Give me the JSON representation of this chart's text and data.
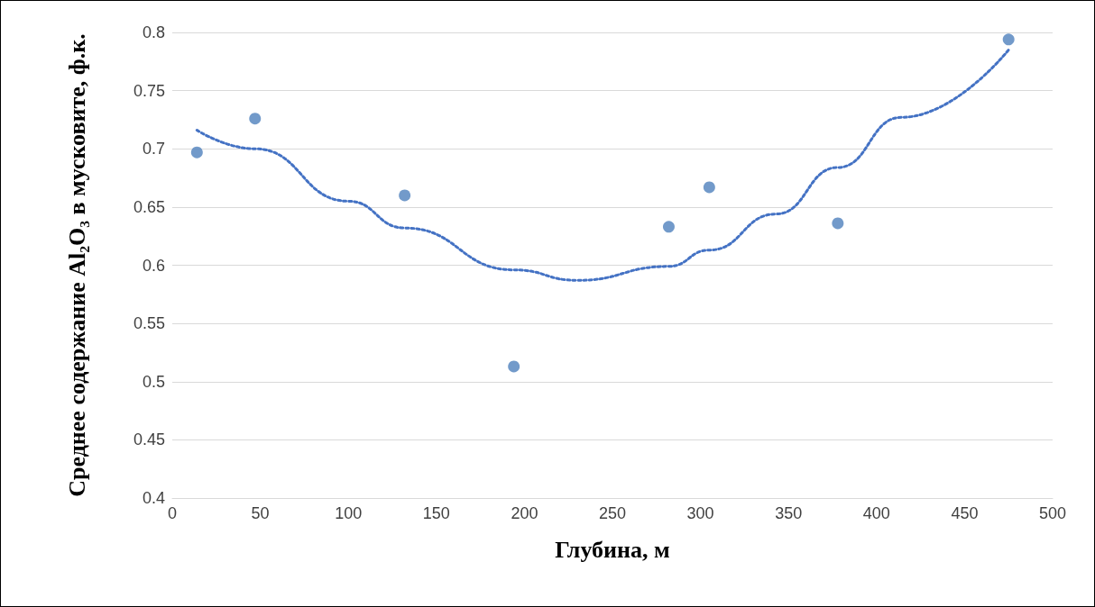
{
  "chart_data": {
    "type": "scatter",
    "xlabel": "Глубина, м",
    "ylabel": "Среднее содержание Al₂O₃ в мусковите, ф.к.",
    "xlim": [
      0,
      500
    ],
    "xticks": [
      0,
      50,
      100,
      150,
      200,
      250,
      300,
      350,
      400,
      450,
      500
    ],
    "ylim": [
      0.4,
      0.8
    ],
    "yticks": [
      0.4,
      0.45,
      0.5,
      0.55,
      0.6,
      0.65,
      0.7,
      0.75,
      0.8
    ],
    "grid": "y",
    "series": [
      {
        "type": "scatter",
        "color": "#4f81bd",
        "marker": "circle",
        "x": [
          14,
          47,
          132,
          194,
          282,
          305,
          378,
          475
        ],
        "values": [
          0.697,
          0.726,
          0.66,
          0.513,
          0.633,
          0.667,
          0.636,
          0.794
        ]
      },
      {
        "type": "line",
        "color": "#4472c4",
        "marker": "none",
        "line_style": "dotted",
        "x": [
          14,
          47,
          100,
          132,
          194,
          230,
          282,
          305,
          343,
          378,
          414,
          475
        ],
        "values": [
          0.716,
          0.7,
          0.655,
          0.632,
          0.596,
          0.587,
          0.599,
          0.613,
          0.644,
          0.684,
          0.727,
          0.785
        ]
      }
    ]
  }
}
